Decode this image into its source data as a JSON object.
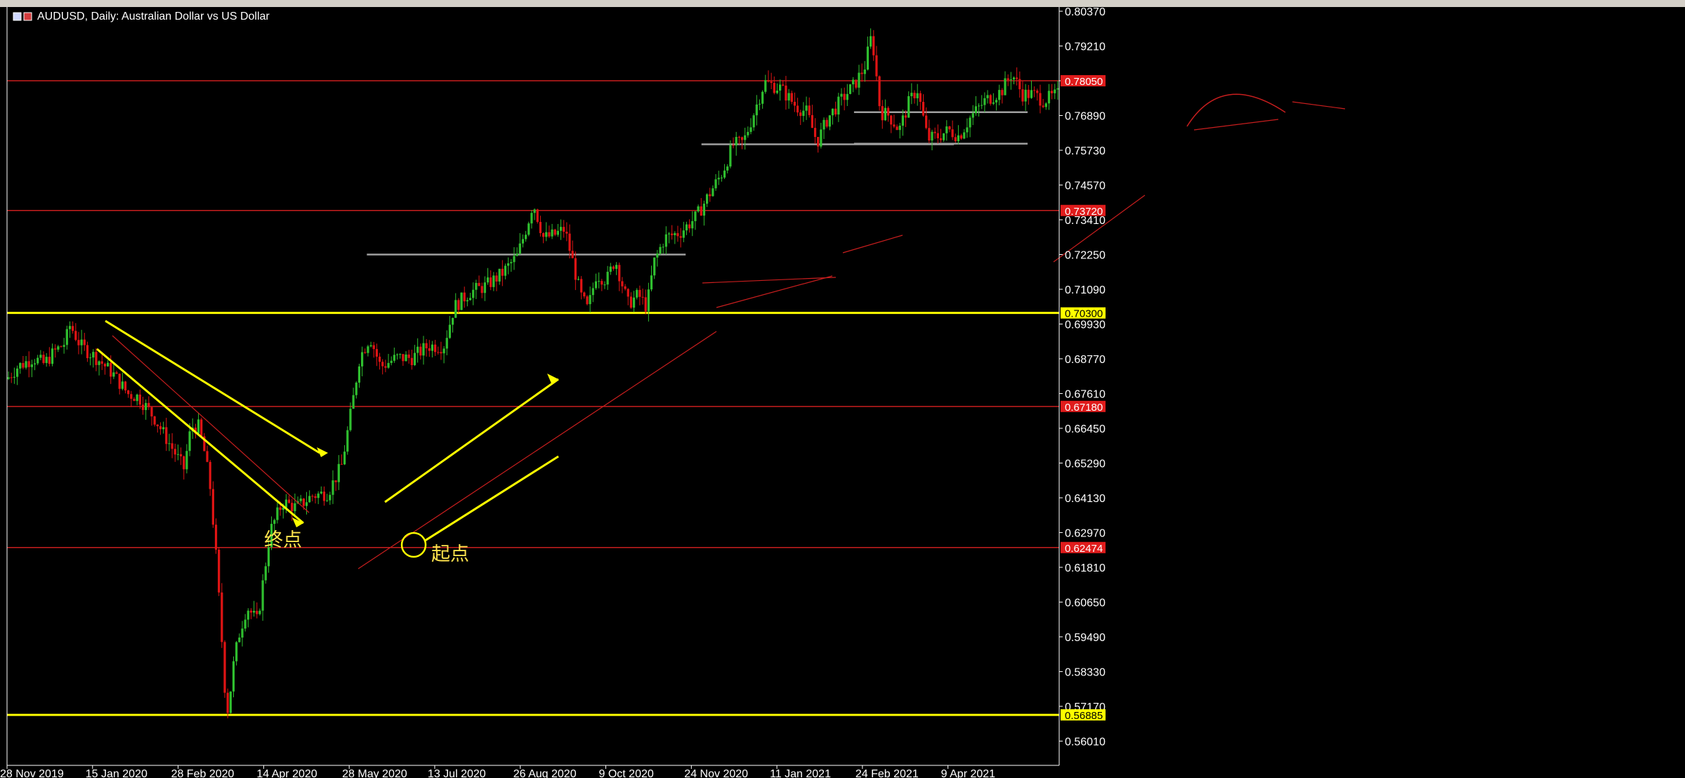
{
  "window": {
    "title": "AUDUSD, Daily:  Australian Dollar vs US Dollar"
  },
  "colors": {
    "background": "#000000",
    "bull": "#2fbf2f",
    "bear": "#e01414",
    "axis": "#ffffff",
    "yellow": "#ffff00",
    "hline_red": "#c81e1e",
    "grey_line": "#a0a0a0"
  },
  "annotations": {
    "end_label": "终点",
    "start_label": "起点"
  },
  "chart_data": {
    "type": "candlestick",
    "title": "AUDUSD, Daily:  Australian Dollar vs US Dollar",
    "ylim": [
      0.552,
      0.8037
    ],
    "y_ticks": [
      "0.80370",
      "0.79210",
      "0.78050",
      "0.76890",
      "0.75730",
      "0.74570",
      "0.73410",
      "0.72250",
      "0.71090",
      "0.69930",
      "0.68770",
      "0.67610",
      "0.66450",
      "0.65290",
      "0.64130",
      "0.62970",
      "0.61810",
      "0.60650",
      "0.59490",
      "0.58330",
      "0.57170",
      "0.56010"
    ],
    "x_ticks": [
      "28 Nov 2019",
      "15 Jan 2020",
      "28 Feb 2020",
      "14 Apr 2020",
      "28 May 2020",
      "13 Jul 2020",
      "26 Aug 2020",
      "9 Oct 2020",
      "24 Nov 2020",
      "11 Jan 2021",
      "24 Feb 2021",
      "9 Apr 2021"
    ],
    "horizontal_levels": [
      {
        "price": 0.7805,
        "label": "0.78050",
        "color": "red"
      },
      {
        "price": 0.7372,
        "label": "0.73720",
        "color": "red"
      },
      {
        "price": 0.703,
        "label": "0.70300",
        "color": "yellow"
      },
      {
        "price": 0.6718,
        "label": "0.67180",
        "color": "red"
      },
      {
        "price": 0.6247,
        "label": "0.62474",
        "color": "red"
      },
      {
        "price": 0.56885,
        "label": "0.56885",
        "color": "yellow"
      }
    ],
    "grey_levels": [
      {
        "from": 0.342,
        "to": 0.645,
        "price": 0.7225
      },
      {
        "from": 0.66,
        "to": 0.9,
        "price": 0.7593
      },
      {
        "from": 0.805,
        "to": 0.97,
        "price": 0.77
      },
      {
        "from": 0.805,
        "to": 0.97,
        "price": 0.7595
      }
    ],
    "price_path": [
      [
        0.0,
        0.681
      ],
      [
        0.01,
        0.685
      ],
      [
        0.025,
        0.688
      ],
      [
        0.035,
        0.686
      ],
      [
        0.045,
        0.69
      ],
      [
        0.055,
        0.693
      ],
      [
        0.06,
        0.699
      ],
      [
        0.07,
        0.692
      ],
      [
        0.085,
        0.688
      ],
      [
        0.1,
        0.683
      ],
      [
        0.115,
        0.676
      ],
      [
        0.125,
        0.675
      ],
      [
        0.14,
        0.668
      ],
      [
        0.15,
        0.662
      ],
      [
        0.16,
        0.656
      ],
      [
        0.168,
        0.651
      ],
      [
        0.175,
        0.665
      ],
      [
        0.182,
        0.665
      ],
      [
        0.188,
        0.656
      ],
      [
        0.193,
        0.645
      ],
      [
        0.198,
        0.625
      ],
      [
        0.203,
        0.6
      ],
      [
        0.207,
        0.578
      ],
      [
        0.21,
        0.57
      ],
      [
        0.215,
        0.585
      ],
      [
        0.22,
        0.595
      ],
      [
        0.228,
        0.605
      ],
      [
        0.238,
        0.6
      ],
      [
        0.25,
        0.63
      ],
      [
        0.262,
        0.64
      ],
      [
        0.275,
        0.638
      ],
      [
        0.29,
        0.642
      ],
      [
        0.305,
        0.643
      ],
      [
        0.318,
        0.652
      ],
      [
        0.328,
        0.672
      ],
      [
        0.335,
        0.688
      ],
      [
        0.345,
        0.695
      ],
      [
        0.355,
        0.685
      ],
      [
        0.37,
        0.688
      ],
      [
        0.385,
        0.688
      ],
      [
        0.4,
        0.692
      ],
      [
        0.415,
        0.692
      ],
      [
        0.425,
        0.705
      ],
      [
        0.44,
        0.71
      ],
      [
        0.455,
        0.712
      ],
      [
        0.47,
        0.716
      ],
      [
        0.485,
        0.722
      ],
      [
        0.495,
        0.733
      ],
      [
        0.5,
        0.74
      ],
      [
        0.51,
        0.728
      ],
      [
        0.52,
        0.729
      ],
      [
        0.53,
        0.731
      ],
      [
        0.537,
        0.721
      ],
      [
        0.545,
        0.709
      ],
      [
        0.552,
        0.704
      ],
      [
        0.56,
        0.716
      ],
      [
        0.57,
        0.714
      ],
      [
        0.578,
        0.721
      ],
      [
        0.59,
        0.706
      ],
      [
        0.6,
        0.709
      ],
      [
        0.608,
        0.705
      ],
      [
        0.615,
        0.72
      ],
      [
        0.625,
        0.728
      ],
      [
        0.64,
        0.73
      ],
      [
        0.655,
        0.735
      ],
      [
        0.668,
        0.743
      ],
      [
        0.68,
        0.75
      ],
      [
        0.69,
        0.759
      ],
      [
        0.7,
        0.76
      ],
      [
        0.71,
        0.77
      ],
      [
        0.72,
        0.78
      ],
      [
        0.735,
        0.778
      ],
      [
        0.75,
        0.772
      ],
      [
        0.76,
        0.77
      ],
      [
        0.77,
        0.76
      ],
      [
        0.78,
        0.768
      ],
      [
        0.795,
        0.775
      ],
      [
        0.805,
        0.779
      ],
      [
        0.815,
        0.785
      ],
      [
        0.822,
        0.796
      ],
      [
        0.83,
        0.77
      ],
      [
        0.838,
        0.769
      ],
      [
        0.848,
        0.764
      ],
      [
        0.857,
        0.773
      ],
      [
        0.865,
        0.778
      ],
      [
        0.875,
        0.761
      ],
      [
        0.885,
        0.762
      ],
      [
        0.895,
        0.764
      ],
      [
        0.905,
        0.762
      ],
      [
        0.915,
        0.768
      ],
      [
        0.93,
        0.774
      ],
      [
        0.945,
        0.777
      ],
      [
        0.955,
        0.783
      ],
      [
        0.965,
        0.776
      ],
      [
        0.975,
        0.776
      ],
      [
        0.985,
        0.774
      ],
      [
        1.0,
        0.776
      ]
    ]
  }
}
